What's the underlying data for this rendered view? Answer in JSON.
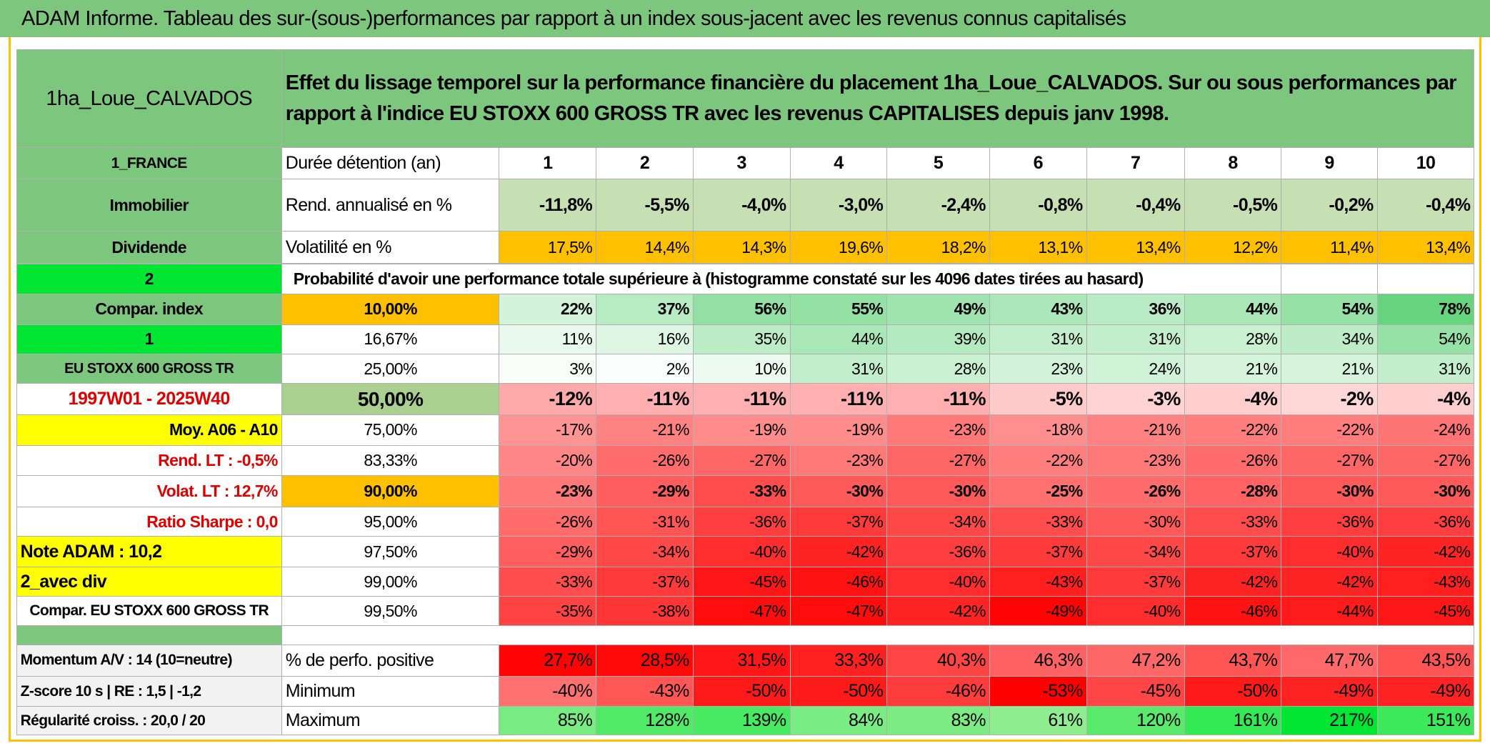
{
  "title": "ADAM Informe. Tableau des sur-(sous-)performances par rapport à un index sous-jacent avec les revenus connus capitalisés",
  "header": {
    "name": "1ha_Loue_CALVADOS",
    "description": "Effet du lissage temporel sur la performance financière du placement 1ha_Loue_CALVADOS. Sur ou sous performances par rapport à l'indice EU STOXX 600 GROSS TR avec les revenus CAPITALISES depuis janv 1998."
  },
  "table": {
    "rows": [
      {
        "left": "1_FRANCE",
        "label": "Durée détention (an)",
        "values": [
          "1",
          "2",
          "3",
          "4",
          "5",
          "6",
          "7",
          "8",
          "9",
          "10"
        ]
      },
      {
        "left": "Immobilier",
        "label": "Rend. annualisé en %",
        "values": [
          "-11,8%",
          "-5,5%",
          "-4,0%",
          "-3,0%",
          "-2,4%",
          "-0,8%",
          "-0,4%",
          "-0,5%",
          "-0,2%",
          "-0,4%"
        ]
      },
      {
        "left": "Dividende",
        "label": "Volatilité en %",
        "values": [
          "17,5%",
          "14,4%",
          "14,3%",
          "19,6%",
          "18,2%",
          "13,1%",
          "13,4%",
          "12,2%",
          "11,4%",
          "13,4%"
        ]
      },
      {
        "left": "2",
        "label": "Probabilité d'avoir une performance totale supérieure à (histogramme constaté sur les 4096 dates tirées au hasard)"
      },
      {
        "left": "Compar. index",
        "label": "10,00%",
        "values": [
          "22%",
          "37%",
          "56%",
          "55%",
          "49%",
          "43%",
          "36%",
          "44%",
          "54%",
          "78%"
        ]
      },
      {
        "left": "1",
        "label": "16,67%",
        "values": [
          "11%",
          "16%",
          "35%",
          "44%",
          "39%",
          "31%",
          "31%",
          "28%",
          "34%",
          "54%"
        ]
      },
      {
        "left": "EU STOXX 600 GROSS TR",
        "label": "25,00%",
        "values": [
          "3%",
          "2%",
          "10%",
          "31%",
          "28%",
          "23%",
          "24%",
          "21%",
          "21%",
          "31%"
        ]
      },
      {
        "left": "1997W01 - 2025W40",
        "label": "50,00%",
        "values": [
          "-12%",
          "-11%",
          "-11%",
          "-11%",
          "-11%",
          "-5%",
          "-3%",
          "-4%",
          "-2%",
          "-4%"
        ]
      },
      {
        "left": "Moy. A06 - A10",
        "label": "75,00%",
        "values": [
          "-17%",
          "-21%",
          "-19%",
          "-19%",
          "-23%",
          "-18%",
          "-21%",
          "-22%",
          "-22%",
          "-24%"
        ]
      },
      {
        "left": "Rend. LT :    -0,5%",
        "label": "83,33%",
        "values": [
          "-20%",
          "-26%",
          "-27%",
          "-23%",
          "-27%",
          "-22%",
          "-23%",
          "-26%",
          "-27%",
          "-27%"
        ]
      },
      {
        "left": "Volat. LT :    12,7%",
        "label": "90,00%",
        "values": [
          "-23%",
          "-29%",
          "-33%",
          "-30%",
          "-30%",
          "-25%",
          "-26%",
          "-28%",
          "-30%",
          "-30%"
        ]
      },
      {
        "left": "Ratio Sharpe :    0,0",
        "label": "95,00%",
        "values": [
          "-26%",
          "-31%",
          "-36%",
          "-37%",
          "-34%",
          "-33%",
          "-30%",
          "-33%",
          "-36%",
          "-36%"
        ]
      },
      {
        "left": "Note ADAM : 10,2",
        "label": "97,50%",
        "values": [
          "-29%",
          "-34%",
          "-40%",
          "-42%",
          "-36%",
          "-37%",
          "-34%",
          "-37%",
          "-40%",
          "-42%"
        ]
      },
      {
        "left": "2_avec div",
        "label": "99,00%",
        "values": [
          "-33%",
          "-37%",
          "-45%",
          "-46%",
          "-40%",
          "-43%",
          "-37%",
          "-42%",
          "-42%",
          "-43%"
        ]
      },
      {
        "left": "Compar. EU STOXX 600 GROSS TR",
        "label": "99,50%",
        "values": [
          "-35%",
          "-38%",
          "-47%",
          "-47%",
          "-42%",
          "-49%",
          "-40%",
          "-46%",
          "-44%",
          "-45%"
        ]
      },
      {
        "left": "Momentum A/V : 14 (10=neutre)",
        "label": "% de perfo. positive",
        "values": [
          "27,7%",
          "28,5%",
          "31,5%",
          "33,3%",
          "40,3%",
          "46,3%",
          "47,2%",
          "43,7%",
          "47,7%",
          "43,5%"
        ]
      },
      {
        "left": "Z-score 10 s | RE : 1,5 | -1,2",
        "label": "Minimum",
        "values": [
          "-40%",
          "-43%",
          "-50%",
          "-50%",
          "-46%",
          "-53%",
          "-45%",
          "-50%",
          "-49%",
          "-49%"
        ]
      },
      {
        "left": "Régularité croiss. : 20,0 / 20",
        "label": "Maximum",
        "values": [
          "85%",
          "128%",
          "139%",
          "84%",
          "83%",
          "61%",
          "120%",
          "161%",
          "217%",
          "151%"
        ]
      }
    ]
  }
}
